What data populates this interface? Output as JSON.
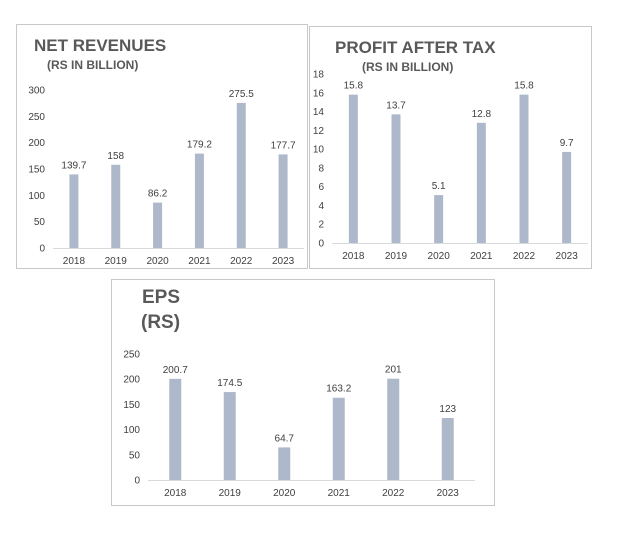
{
  "colors": {
    "bar": "#adb9ca",
    "axis": "#d9d9d9",
    "text": "#404040",
    "title": "#595959"
  },
  "chart_data": [
    {
      "type": "bar",
      "title": "NET REVENUES",
      "subtitle": "(RS IN BILLION)",
      "categories": [
        "2018",
        "2019",
        "2020",
        "2021",
        "2022",
        "2023"
      ],
      "values": [
        139.7,
        158,
        86.2,
        179.2,
        275.5,
        177.7
      ],
      "value_labels": [
        "139.7",
        "158",
        "86.2",
        "179.2",
        "275.5",
        "177.7"
      ],
      "ylim": [
        0,
        300
      ],
      "yticks": [
        "0",
        "50",
        "100",
        "150",
        "200",
        "250",
        "300"
      ],
      "grid": false
    },
    {
      "type": "bar",
      "title": "PROFIT AFTER TAX",
      "subtitle": "(RS IN BILLION)",
      "categories": [
        "2018",
        "2019",
        "2020",
        "2021",
        "2022",
        "2023"
      ],
      "values": [
        15.8,
        13.7,
        5.1,
        12.8,
        15.8,
        9.7
      ],
      "value_labels": [
        "15.8",
        "13.7",
        "5.1",
        "12.8",
        "15.8",
        "9.7"
      ],
      "ylim": [
        0,
        18
      ],
      "yticks": [
        "0",
        "2",
        "4",
        "6",
        "8",
        "10",
        "12",
        "14",
        "16",
        "18"
      ],
      "grid": false
    },
    {
      "type": "bar",
      "title": "EPS",
      "subtitle": "(RS)",
      "categories": [
        "2018",
        "2019",
        "2020",
        "2021",
        "2022",
        "2023"
      ],
      "values": [
        200.7,
        174.5,
        64.7,
        163.2,
        201,
        123
      ],
      "value_labels": [
        "200.7",
        "174.5",
        "64.7",
        "163.2",
        "201",
        "123"
      ],
      "ylim": [
        0,
        250
      ],
      "yticks": [
        "0",
        "50",
        "100",
        "150",
        "200",
        "250"
      ],
      "grid": false
    }
  ]
}
